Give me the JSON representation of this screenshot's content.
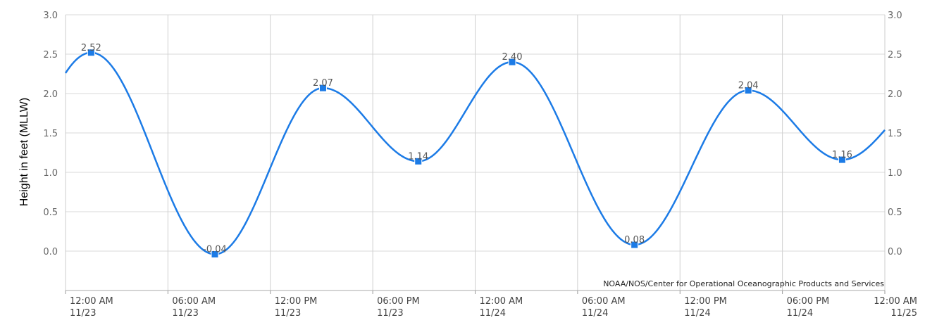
{
  "chart_data": {
    "type": "line",
    "ylabel": "Height in feet (MLLW)",
    "ylim": [
      -0.5,
      3.0
    ],
    "yticks": [
      "0.0",
      "0.5",
      "1.0",
      "1.5",
      "2.0",
      "2.5",
      "3.0"
    ],
    "xticks": [
      {
        "time": "12:00 AM",
        "date": "11/23"
      },
      {
        "time": "06:00 AM",
        "date": "11/23"
      },
      {
        "time": "12:00 PM",
        "date": "11/23"
      },
      {
        "time": "06:00 PM",
        "date": "11/23"
      },
      {
        "time": "12:00 AM",
        "date": "11/24"
      },
      {
        "time": "06:00 AM",
        "date": "11/24"
      },
      {
        "time": "12:00 PM",
        "date": "11/24"
      },
      {
        "time": "06:00 PM",
        "date": "11/24"
      },
      {
        "time": "12:00 AM",
        "date": "11/25"
      }
    ],
    "xlim": [
      "11/23 12:00 AM",
      "11/25 12:00 AM"
    ],
    "grid": true,
    "series": [
      {
        "color": "#1c7be6",
        "start_value": 2.25,
        "end_value": 1.55,
        "points": [
          {
            "x": "11/23 01:30 AM",
            "y": 2.52,
            "label": "2.52"
          },
          {
            "x": "11/23 08:45 AM",
            "y": -0.04,
            "label": "-0.04"
          },
          {
            "x": "11/23 03:05 PM",
            "y": 2.07,
            "label": "2.07"
          },
          {
            "x": "11/23 08:40 PM",
            "y": 1.14,
            "label": "1.14"
          },
          {
            "x": "11/24 02:10 AM",
            "y": 2.4,
            "label": "2.40"
          },
          {
            "x": "11/24 09:20 AM",
            "y": 0.08,
            "label": "0.08"
          },
          {
            "x": "11/24 04:00 PM",
            "y": 2.04,
            "label": "2.04"
          },
          {
            "x": "11/24 09:30 PM",
            "y": 1.16,
            "label": "1.16"
          }
        ]
      }
    ],
    "credit": "NOAA/NOS/Center for Operational Oceanographic Products and Services"
  }
}
